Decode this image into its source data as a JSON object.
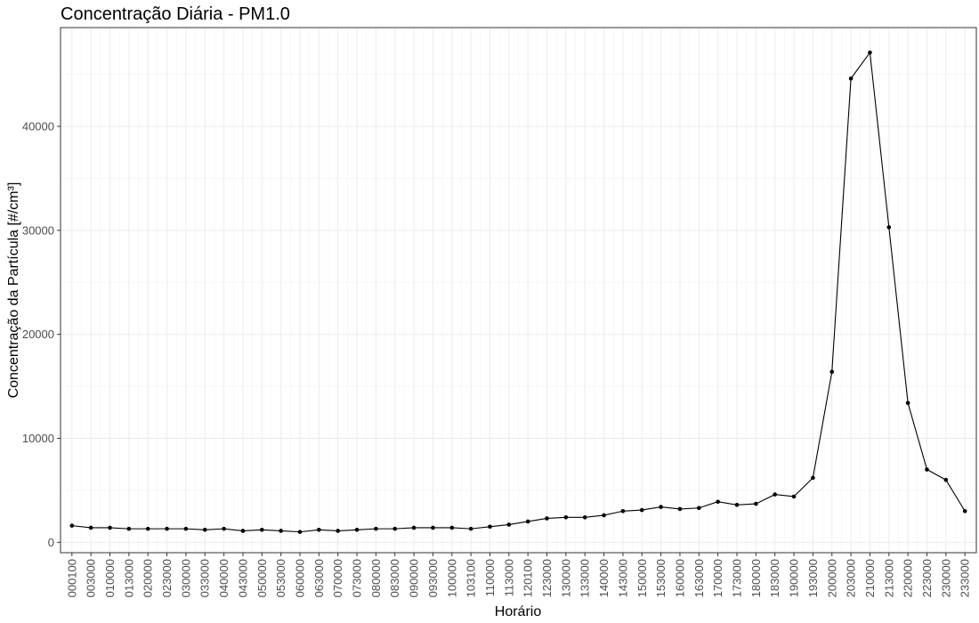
{
  "chart_data": {
    "type": "line",
    "title": "Concentração Diária - PM1.0",
    "xlabel": "Horário",
    "ylabel": "Concentração da Partícula [#/cm³]",
    "ylim": [
      -1000,
      49500
    ],
    "yticks": [
      0,
      10000,
      20000,
      30000,
      40000
    ],
    "ytick_labels": [
      "0",
      "10000",
      "20000",
      "30000",
      "40000"
    ],
    "grid": true,
    "categories": [
      "000100",
      "003000",
      "010000",
      "013000",
      "020000",
      "023000",
      "030000",
      "033000",
      "040000",
      "043000",
      "050000",
      "053000",
      "060000",
      "063000",
      "070000",
      "073000",
      "080000",
      "083000",
      "090000",
      "093000",
      "100000",
      "103100",
      "110000",
      "113000",
      "120100",
      "123000",
      "130000",
      "133000",
      "140000",
      "143000",
      "150000",
      "153000",
      "160000",
      "163000",
      "170000",
      "173000",
      "180000",
      "183000",
      "190000",
      "193000",
      "200000",
      "203000",
      "210000",
      "213000",
      "220000",
      "223000",
      "230000",
      "233000"
    ],
    "series": [
      {
        "values": [
          1600,
          1400,
          1400,
          1300,
          1300,
          1300,
          1300,
          1200,
          1300,
          1100,
          1200,
          1100,
          1000,
          1200,
          1100,
          1200,
          1300,
          1300,
          1400,
          1400,
          1400,
          1300,
          1500,
          1700,
          2000,
          2300,
          2400,
          2400,
          2600,
          3000,
          3100,
          3400,
          3200,
          3300,
          3900,
          3600,
          3700,
          4600,
          4400,
          6200,
          16400,
          44600,
          47100,
          30300,
          13400,
          7000,
          6000,
          3000
        ],
        "color": "#000000"
      }
    ]
  }
}
